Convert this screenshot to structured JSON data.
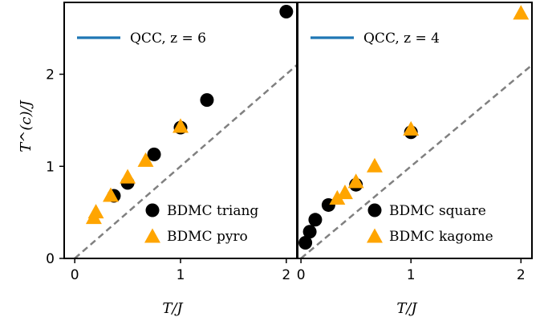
{
  "chart_data": [
    {
      "type": "scatter",
      "xlabel": "T/J",
      "ylabel": "T^(c)/J",
      "xlim": [
        -0.1,
        2.1
      ],
      "ylim": [
        0,
        2.78
      ],
      "xticks": [
        "0",
        "1",
        "2"
      ],
      "yticks": [
        "0",
        "1",
        "2"
      ],
      "legend_position": "upper-left and lower-right",
      "line": {
        "name": "QCC, z = 6",
        "z": 6,
        "color": "#1f77b4"
      },
      "diagonal": {
        "style": "dashed",
        "color": "#808080"
      },
      "series": [
        {
          "name": "BDMC triang",
          "marker": "circle",
          "color": "#000000",
          "x": [
            0.37,
            0.5,
            0.75,
            1.0,
            1.25,
            2.0
          ],
          "y": [
            0.68,
            0.82,
            1.13,
            1.42,
            1.72,
            2.68
          ]
        },
        {
          "name": "BDMC pyro",
          "marker": "triangle",
          "color": "#ffa500",
          "x": [
            0.18,
            0.2,
            0.34,
            0.5,
            0.67,
            1.0
          ],
          "y": [
            0.44,
            0.5,
            0.68,
            0.88,
            1.06,
            1.43
          ]
        }
      ]
    },
    {
      "type": "scatter",
      "xlabel": "T/J",
      "ylabel": "",
      "xlim": [
        -0.03,
        2.1
      ],
      "ylim": [
        0,
        2.78
      ],
      "xticks": [
        "0",
        "1",
        "2"
      ],
      "legend_position": "upper-left and lower-right",
      "line": {
        "name": "QCC, z = 4",
        "z": 4,
        "color": "#1f77b4"
      },
      "diagonal": {
        "style": "dashed",
        "color": "#808080"
      },
      "series": [
        {
          "name": "BDMC square",
          "marker": "circle",
          "color": "#000000",
          "x": [
            0.04,
            0.08,
            0.13,
            0.25,
            0.5,
            1.0
          ],
          "y": [
            0.17,
            0.29,
            0.42,
            0.58,
            0.8,
            1.37
          ]
        },
        {
          "name": "BDMC kagome",
          "marker": "triangle",
          "color": "#ffa500",
          "x": [
            0.33,
            0.4,
            0.5,
            0.67,
            1.0,
            2.0
          ],
          "y": [
            0.65,
            0.71,
            0.83,
            1.0,
            1.4,
            2.66
          ]
        }
      ]
    }
  ]
}
